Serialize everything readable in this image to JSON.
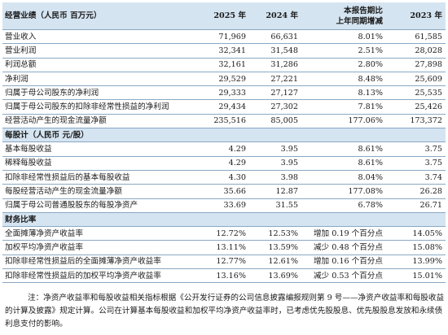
{
  "header": {
    "label": "经营业绩（人民币 百万元）",
    "year_2025": "2025 年",
    "year_2024": "2024 年",
    "change_line1": "本报告期比",
    "change_line2": "上年同期增减",
    "year_2023": "2023 年"
  },
  "performance_rows": [
    {
      "label": "营业收入",
      "v2025": "71,969",
      "v2024": "66,631",
      "change": "8.01%",
      "v2023": "61,585"
    },
    {
      "label": "营业利润",
      "v2025": "32,341",
      "v2024": "31,548",
      "change": "2.51%",
      "v2023": "28,028"
    },
    {
      "label": "利润总额",
      "v2025": "32,161",
      "v2024": "31,286",
      "change": "2.80%",
      "v2023": "27,898"
    },
    {
      "label": "净利润",
      "v2025": "29,529",
      "v2024": "27,221",
      "change": "8.48%",
      "v2023": "25,609"
    },
    {
      "label": "归属于母公司股东的净利润",
      "v2025": "29,333",
      "v2024": "27,127",
      "change": "8.13%",
      "v2023": "25,535"
    },
    {
      "label": "归属于母公司股东的扣除非经常性损益的净利润",
      "v2025": "29,434",
      "v2024": "27,302",
      "change": "7.81%",
      "v2023": "25,426"
    },
    {
      "label": "经营活动产生的现金流量净额",
      "v2025": "235,516",
      "v2024": "85,005",
      "change": "177.06%",
      "v2023": "173,372"
    }
  ],
  "per_share_section": {
    "title": "每股计（人民币 元/股）",
    "rows": [
      {
        "label": "基本每股收益",
        "v2025": "4.29",
        "v2024": "3.95",
        "change": "8.61%",
        "v2023": "3.75"
      },
      {
        "label": "稀释每股收益",
        "v2025": "4.29",
        "v2024": "3.95",
        "change": "8.61%",
        "v2023": "3.75"
      },
      {
        "label": "扣除非经常性损益后的基本每股收益",
        "v2025": "4.30",
        "v2024": "3.98",
        "change": "8.04%",
        "v2023": "3.74"
      },
      {
        "label": "每股经营活动产生的现金流量净额",
        "v2025": "35.66",
        "v2024": "12.87",
        "change": "177.08%",
        "v2023": "26.28"
      },
      {
        "label": "归属于母公司普通股股东的每股净资产",
        "v2025": "33.69",
        "v2024": "31.55",
        "change": "6.78%",
        "v2023": "26.71"
      }
    ]
  },
  "ratio_section": {
    "title": "财务比率",
    "rows": [
      {
        "label": "全面摊薄净资产收益率",
        "v2025": "12.72%",
        "v2024": "12.53%",
        "change": "增加 0.19 个百分点",
        "v2023": "14.05%"
      },
      {
        "label": "加权平均净资产收益率",
        "v2025": "13.11%",
        "v2024": "13.59%",
        "change": "减少 0.48 个百分点",
        "v2023": "15.08%"
      },
      {
        "label": "扣除非经常性损益后的全面摊薄净资产收益率",
        "v2025": "12.77%",
        "v2024": "12.61%",
        "change": "增加 0.16 个百分点",
        "v2023": "13.99%"
      },
      {
        "label": "扣除非经常性损益后的加权平均净资产收益率",
        "v2025": "13.16%",
        "v2024": "13.69%",
        "change": "减少 0.53 个百分点",
        "v2023": "15.01%"
      }
    ]
  },
  "footnote": "注：净资产收益率和每股收益相关指标根据《公开发行证券的公司信息披露编报规则第 9 号——净资产收益率和每股收益的计算及披露》规定计算。公司在计算基本每股收益和加权平均净资产收益率时，已考虑优先股股息、优先股股息发放和永续债利息支付的影响。"
}
